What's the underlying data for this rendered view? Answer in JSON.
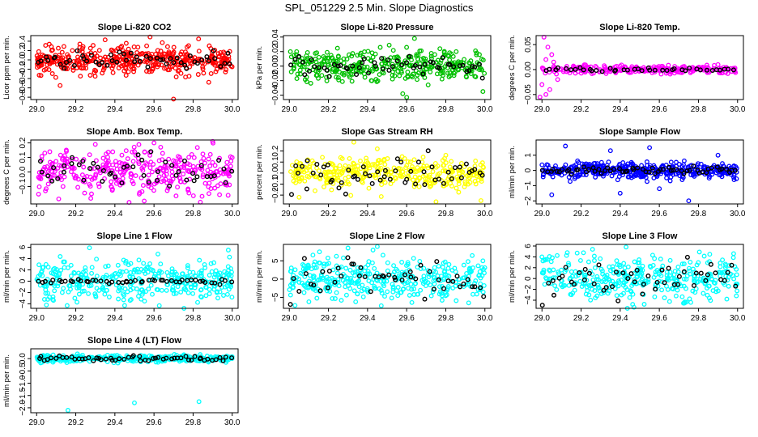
{
  "title": "SPL_051229  2.5 Min. Slope Diagnostics",
  "colors": {
    "overlay": "#000000"
  },
  "chart_data": [
    {
      "type": "scatter",
      "title": "Slope Li-820 CO2",
      "ylabel": "Licor ppm per min.",
      "color": "#ff0000",
      "xlim": [
        28.97,
        30.03
      ],
      "ylim": [
        -0.85,
        0.52
      ],
      "xticks": [
        29.0,
        29.2,
        29.4,
        29.6,
        29.8,
        30.0
      ],
      "yticks": [
        -0.8,
        -0.6,
        -0.4,
        -0.2,
        0.0,
        0.2,
        0.4
      ],
      "spread": 0.15,
      "n": 420,
      "overlay_n": 55,
      "overlay_spread": 0.11,
      "outliers": [
        [
          29.58,
          0.49
        ],
        [
          29.7,
          -0.84
        ],
        [
          29.35,
          0.43
        ],
        [
          29.12,
          -0.55
        ],
        [
          29.88,
          -0.48
        ]
      ]
    },
    {
      "type": "scatter",
      "title": "Slope Li-820 Pressure",
      "ylabel": "kPa per min.",
      "color": "#00c000",
      "xlim": [
        28.97,
        30.03
      ],
      "ylim": [
        -0.046,
        0.042
      ],
      "xticks": [
        29.0,
        29.2,
        29.4,
        29.6,
        29.8,
        30.0
      ],
      "yticks": [
        -0.04,
        -0.02,
        0.0,
        0.02,
        0.04
      ],
      "spread": 0.011,
      "n": 360,
      "overlay_n": 55,
      "overlay_spread": 0.006,
      "outliers": [
        [
          29.64,
          0.038
        ],
        [
          29.58,
          -0.038
        ],
        [
          29.6,
          -0.043
        ],
        [
          29.77,
          0.024
        ],
        [
          29.99,
          -0.035
        ]
      ]
    },
    {
      "type": "scatter",
      "title": "Slope Li-820 Temp.",
      "ylabel": "degrees C per min.",
      "color": "#ff00ff",
      "xlim": [
        28.97,
        30.03
      ],
      "ylim": [
        -0.06,
        0.068
      ],
      "xticks": [
        29.0,
        29.2,
        29.4,
        29.6,
        29.8,
        30.0
      ],
      "yticks": [
        -0.05,
        0.0,
        0.05
      ],
      "spread": 0.004,
      "n": 260,
      "overlay_n": 40,
      "overlay_spread": 0.002,
      "outliers": [
        [
          29.01,
          0.065
        ],
        [
          29.02,
          -0.05
        ],
        [
          29.05,
          0.03
        ],
        [
          28.99,
          -0.055
        ],
        [
          29.03,
          0.045
        ],
        [
          29.0,
          -0.03
        ],
        [
          29.04,
          -0.04
        ],
        [
          29.02,
          0.02
        ],
        [
          29.06,
          0.015
        ],
        [
          29.08,
          -0.02
        ],
        [
          29.9,
          0.01
        ],
        [
          29.95,
          -0.008
        ]
      ]
    },
    {
      "type": "scatter",
      "title": "Slope Amb. Box Temp.",
      "ylabel": "degrees C per min.",
      "color": "#ff00ff",
      "xlim": [
        28.97,
        30.03
      ],
      "ylim": [
        -0.22,
        0.22
      ],
      "xticks": [
        29.0,
        29.2,
        29.4,
        29.6,
        29.8,
        30.0
      ],
      "yticks": [
        -0.1,
        0.0,
        0.1,
        0.2
      ],
      "spread": 0.075,
      "n": 340,
      "overlay_n": 50,
      "overlay_spread": 0.06,
      "outliers": [
        [
          29.9,
          0.21
        ],
        [
          29.55,
          -0.2
        ],
        [
          29.3,
          0.19
        ],
        [
          29.6,
          0.2
        ]
      ]
    },
    {
      "type": "scatter",
      "title": "Slope Gas Stream RH",
      "ylabel": "percent per min.",
      "color": "#ffff00",
      "xlim": [
        28.97,
        30.03
      ],
      "ylim": [
        -0.28,
        0.3
      ],
      "xticks": [
        29.0,
        29.2,
        29.4,
        29.6,
        29.8,
        30.0
      ],
      "yticks": [
        -0.2,
        -0.1,
        0.0,
        0.1,
        0.2
      ],
      "spread": 0.07,
      "n": 340,
      "overlay_n": 55,
      "overlay_spread": 0.08,
      "outliers": [
        [
          29.33,
          0.28
        ],
        [
          29.75,
          -0.26
        ],
        [
          29.05,
          -0.22
        ],
        [
          29.98,
          -0.25
        ],
        [
          29.45,
          0.22
        ]
      ]
    },
    {
      "type": "scatter",
      "title": "Slope Sample Flow",
      "ylabel": "ml/min per min.",
      "color": "#0000ff",
      "xlim": [
        28.97,
        30.03
      ],
      "ylim": [
        -2.2,
        2.0
      ],
      "xticks": [
        29.0,
        29.2,
        29.4,
        29.6,
        29.8,
        30.0
      ],
      "yticks": [
        -2,
        -1,
        0,
        1
      ],
      "spread": 0.25,
      "n": 420,
      "overlay_n": 60,
      "overlay_spread": 0.12,
      "outliers": [
        [
          29.12,
          1.6
        ],
        [
          29.35,
          1.3
        ],
        [
          29.05,
          -1.6
        ],
        [
          29.75,
          -2.0
        ],
        [
          29.4,
          -1.5
        ],
        [
          29.55,
          1.5
        ],
        [
          29.6,
          -1.2
        ],
        [
          29.9,
          1.0
        ]
      ]
    },
    {
      "type": "scatter",
      "title": "Slope Line 1 Flow",
      "ylabel": "ml/min per min.",
      "color": "#00ffff",
      "xlim": [
        28.97,
        30.03
      ],
      "ylim": [
        -4.8,
        6.5
      ],
      "xticks": [
        29.0,
        29.2,
        29.4,
        29.6,
        29.8,
        30.0
      ],
      "yticks": [
        -4,
        -2,
        0,
        2,
        4,
        6
      ],
      "spread": 1.8,
      "n": 360,
      "overlay_n": 50,
      "overlay_spread": 0.2,
      "outliers": [
        [
          29.27,
          5.9
        ],
        [
          29.98,
          5.5
        ],
        [
          29.05,
          -4.2
        ],
        [
          29.45,
          -4.3
        ],
        [
          29.62,
          4.8
        ]
      ]
    },
    {
      "type": "scatter",
      "title": "Slope Line 2 Flow",
      "ylabel": "ml/min per min.",
      "color": "#00ffff",
      "xlim": [
        28.97,
        30.03
      ],
      "ylim": [
        -8.0,
        9.5
      ],
      "xticks": [
        29.0,
        29.2,
        29.4,
        29.6,
        29.8,
        30.0
      ],
      "yticks": [
        -5,
        0,
        5
      ],
      "spread": 2.8,
      "n": 360,
      "overlay_n": 50,
      "overlay_spread": 3.0,
      "outliers": [
        [
          29.3,
          8.5
        ],
        [
          29.47,
          -7.3
        ],
        [
          29.45,
          8.9
        ],
        [
          29.1,
          -6.2
        ],
        [
          29.99,
          5.0
        ]
      ]
    },
    {
      "type": "scatter",
      "title": "Slope Line 3 Flow",
      "ylabel": "ml/min per min.",
      "color": "#00ffff",
      "xlim": [
        28.97,
        30.03
      ],
      "ylim": [
        -5.5,
        6.3
      ],
      "xticks": [
        29.0,
        29.2,
        29.4,
        29.6,
        29.8,
        30.0
      ],
      "yticks": [
        -4,
        -2,
        0,
        2,
        4,
        6
      ],
      "spread": 2.0,
      "n": 360,
      "overlay_n": 50,
      "overlay_spread": 1.8,
      "outliers": [
        [
          29.43,
          5.8
        ],
        [
          29.47,
          -5.3
        ],
        [
          29.18,
          4.7
        ],
        [
          29.98,
          4.6
        ],
        [
          29.0,
          4.0
        ]
      ]
    },
    {
      "type": "scatter",
      "title": "Slope Line 4 (LT) Flow",
      "ylabel": "ml/min per min.",
      "color": "#00ffff",
      "xlim": [
        28.97,
        30.03
      ],
      "ylim": [
        -2.2,
        0.4
      ],
      "xticks": [
        29.0,
        29.2,
        29.4,
        29.6,
        29.8,
        30.0
      ],
      "yticks": [
        -2.0,
        -1.5,
        -1.0,
        -0.5,
        0.0
      ],
      "spread": 0.07,
      "n": 340,
      "overlay_n": 55,
      "overlay_spread": 0.06,
      "outliers": [
        [
          29.16,
          -2.1
        ],
        [
          29.5,
          -1.8
        ],
        [
          29.83,
          -1.75
        ]
      ]
    }
  ]
}
